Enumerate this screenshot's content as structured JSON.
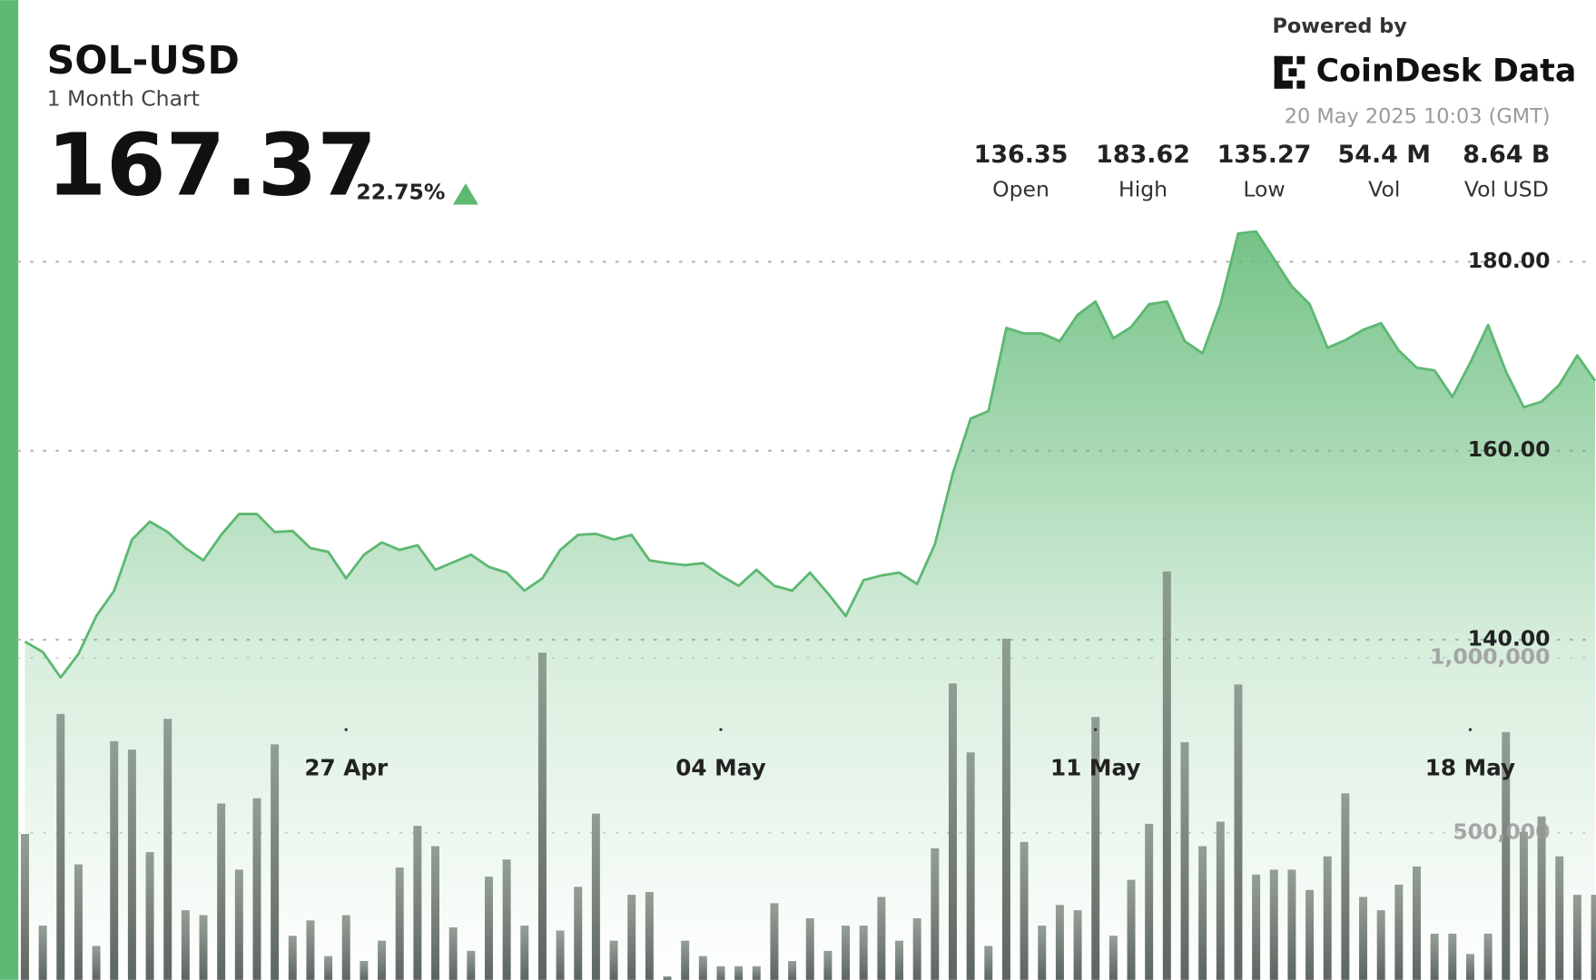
{
  "header": {
    "title": "SOL-USD",
    "subtitle": "1 Month Chart",
    "price": "167.37",
    "change": "22.75%",
    "powered_by": "Powered by",
    "brand": "CoinDesk Data",
    "timestamp": "20 May 2025 10:03 (GMT)",
    "stats": [
      {
        "value": "136.35",
        "label": "Open"
      },
      {
        "value": "183.62",
        "label": "High"
      },
      {
        "value": "135.27",
        "label": "Low"
      },
      {
        "value": "54.4 M",
        "label": "Vol"
      },
      {
        "value": "8.64 B",
        "label": "Vol USD"
      }
    ]
  },
  "chart_data": {
    "type": "area",
    "categories": [
      null,
      null,
      null,
      null,
      null,
      null,
      null,
      null,
      null,
      null,
      null,
      null,
      null,
      null,
      null,
      null,
      null,
      null,
      "27 Apr",
      null,
      null,
      null,
      null,
      null,
      null,
      null,
      null,
      null,
      null,
      null,
      null,
      null,
      null,
      null,
      null,
      null,
      null,
      null,
      null,
      "04 May",
      null,
      null,
      null,
      null,
      null,
      null,
      null,
      null,
      null,
      null,
      null,
      null,
      null,
      null,
      null,
      null,
      null,
      null,
      null,
      null,
      "11 May",
      null,
      null,
      null,
      null,
      null,
      null,
      null,
      null,
      null,
      null,
      null,
      null,
      null,
      null,
      null,
      null,
      null,
      null,
      null,
      null,
      "18 May",
      null,
      null,
      null,
      null,
      null,
      null,
      null
    ],
    "series": [
      {
        "color": "#5db872",
        "values": [
          139.8,
          138.7,
          136.0,
          138.5,
          142.5,
          145.2,
          150.6,
          152.5,
          151.4,
          149.7,
          148.4,
          151.1,
          153.3,
          153.3,
          151.4,
          151.5,
          149.7,
          149.3,
          146.5,
          149.0,
          150.3,
          149.5,
          150.0,
          147.4,
          148.2,
          149.0,
          147.7,
          147.1,
          145.2,
          146.5,
          149.5,
          151.1,
          151.2,
          150.6,
          151.1,
          148.4,
          148.1,
          147.9,
          148.1,
          146.8,
          145.7,
          147.4,
          145.7,
          145.2,
          147.1,
          144.9,
          142.5,
          146.3,
          146.8,
          147.1,
          145.9,
          150.1,
          157.6,
          163.4,
          164.2,
          173.0,
          172.4,
          172.4,
          171.6,
          174.4,
          175.8,
          171.9,
          173.1,
          175.5,
          175.8,
          171.6,
          170.3,
          175.5,
          183.0,
          183.2,
          180.3,
          177.4,
          175.5,
          170.9,
          171.7,
          172.8,
          173.5,
          170.6,
          168.8,
          168.5,
          165.7,
          169.3,
          173.3,
          168.4,
          164.6,
          165.2,
          167.0,
          170.1,
          167.4
        ]
      },
      {
        "type": "bar",
        "axis": "y2",
        "color": "#5d665f",
        "values": [
          497000,
          235000,
          840000,
          410000,
          177000,
          762000,
          738000,
          445000,
          826000,
          279000,
          265000,
          584000,
          395000,
          599000,
          753000,
          206000,
          250000,
          148000,
          265000,
          134000,
          192000,
          401000,
          520000,
          462000,
          230000,
          163000,
          375000,
          424000,
          235000,
          1015000,
          221000,
          346000,
          555000,
          192000,
          323000,
          331000,
          90000,
          192000,
          148000,
          119000,
          119000,
          119000,
          299000,
          134000,
          256000,
          163000,
          235000,
          235000,
          317000,
          192000,
          256000,
          456000,
          927000,
          730000,
          177000,
          1055000,
          474000,
          235000,
          294000,
          279000,
          831000,
          206000,
          366000,
          526000,
          1247000,
          759000,
          462000,
          532000,
          924000,
          381000,
          395000,
          395000,
          337000,
          433000,
          613000,
          317000,
          279000,
          352000,
          404000,
          212000,
          212000,
          154000,
          212000,
          788000,
          503000,
          547000,
          433000,
          323000,
          323000
        ]
      }
    ],
    "ylim": [
      104,
      184
    ],
    "yticks": [
      {
        "value": 140,
        "label": "140.00"
      },
      {
        "value": 160,
        "label": "160.00"
      },
      {
        "value": 180,
        "label": "180.00"
      }
    ],
    "y2lim": [
      80000,
      2240000
    ],
    "y2ticks": [
      {
        "value": 500000,
        "label": "500,000"
      },
      {
        "value": 1000000,
        "label": "1,000,000"
      }
    ],
    "grid": true
  }
}
